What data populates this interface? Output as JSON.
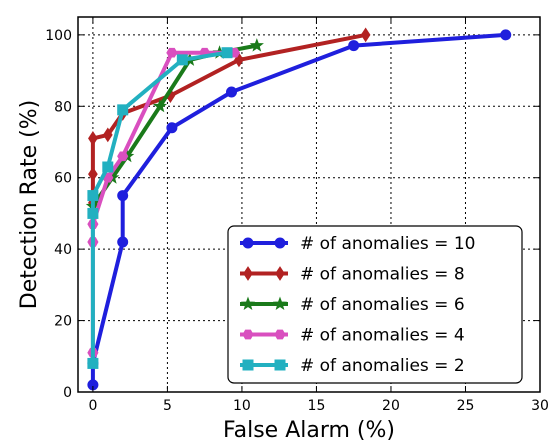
{
  "chart_data": {
    "type": "line",
    "title": "",
    "xlabel": "False Alarm (%)",
    "ylabel": "Detection Rate (%)",
    "xlim": [
      -1,
      30
    ],
    "ylim": [
      0,
      105
    ],
    "xticks": [
      0,
      5,
      10,
      15,
      20,
      25,
      30
    ],
    "yticks": [
      0,
      20,
      40,
      60,
      80,
      100
    ],
    "grid": true,
    "legend_position": "lower-right",
    "series": [
      {
        "name": "# of anomalies = 10",
        "color": "#1f1fdd",
        "marker": "circle",
        "x": [
          0,
          0,
          2,
          2,
          5.3,
          9.3,
          17.5,
          27.7
        ],
        "y": [
          2,
          8,
          42,
          55,
          74,
          84,
          97,
          100
        ]
      },
      {
        "name": "# of anomalies = 8",
        "color": "#b22222",
        "marker": "diamond",
        "x": [
          0,
          0,
          0,
          1,
          2,
          5.2,
          9.8,
          18.3
        ],
        "y": [
          53,
          61,
          71,
          72,
          78,
          83,
          93,
          100
        ]
      },
      {
        "name": "# of anomalies = 6",
        "color": "#1a7a1a",
        "marker": "star",
        "x": [
          0,
          1.3,
          2.3,
          4.5,
          6.5,
          8.5,
          11
        ],
        "y": [
          52,
          60,
          66,
          80,
          93,
          95,
          97
        ]
      },
      {
        "name": "# of anomalies = 4",
        "color": "#d94fbf",
        "marker": "hexagon",
        "x": [
          0,
          0,
          0,
          1,
          2,
          5.3,
          7.5,
          9.5
        ],
        "y": [
          11,
          42,
          47,
          60,
          66,
          95,
          95,
          95
        ]
      },
      {
        "name": "# of anomalies = 2",
        "color": "#22b0c0",
        "marker": "square",
        "x": [
          0,
          0,
          0,
          1,
          2,
          6,
          9
        ],
        "y": [
          8,
          50,
          55,
          63,
          79,
          93,
          95
        ]
      }
    ]
  }
}
